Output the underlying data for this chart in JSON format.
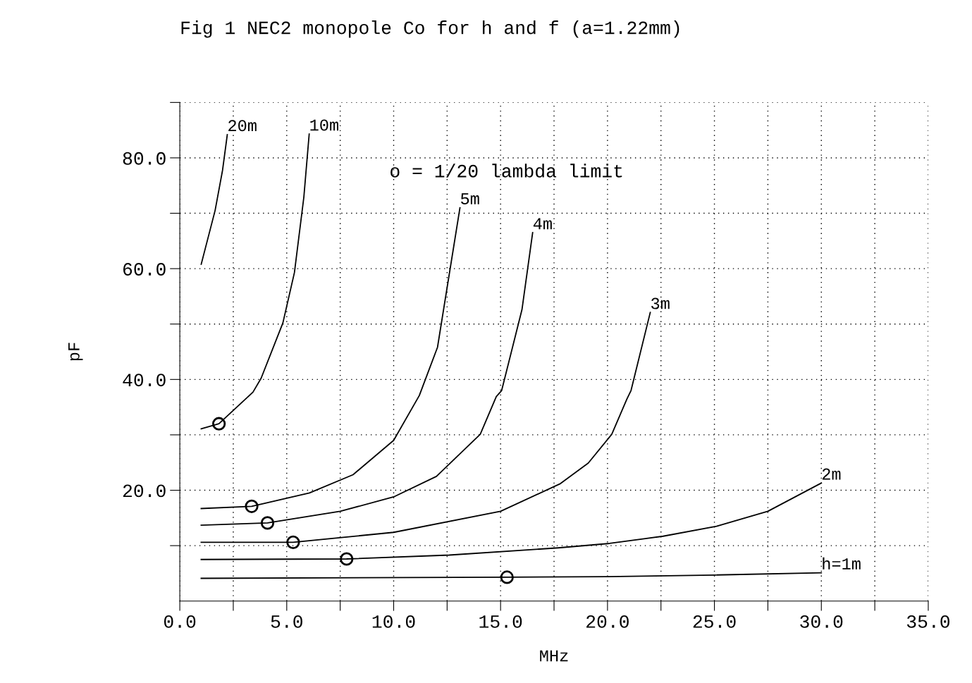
{
  "chart_data": {
    "type": "line",
    "title": "Fig 1 NEC2 monopole Co for h and f (a=1.22mm)",
    "xlabel": "MHz",
    "ylabel": "pF",
    "annotations": [
      "o = 1/20 lambda limit"
    ],
    "series": [
      {
        "name": "20m",
        "color": "#000000",
        "x": [
          1,
          1.65,
          2.0,
          2.22
        ],
        "values": [
          60.8,
          70.5,
          77.8,
          84.2
        ]
      },
      {
        "name": "10m",
        "color": "#000000",
        "x": [
          1,
          1.83,
          3.42,
          3.8,
          4.82,
          5.36,
          5.8,
          6.05
        ],
        "values": [
          31.1,
          32.0,
          37.7,
          40.2,
          50.2,
          59.3,
          72.9,
          84.3
        ]
      },
      {
        "name": "5m",
        "color": "#000000",
        "x": [
          1,
          3.36,
          6.06,
          8.1,
          10.0,
          11.2,
          12.05,
          13.1
        ],
        "values": [
          16.7,
          17.1,
          19.5,
          22.8,
          29.0,
          37.1,
          45.8,
          71.0
        ]
      },
      {
        "name": "4m",
        "color": "#000000",
        "x": [
          1,
          4.1,
          7.5,
          10.0,
          12.0,
          14.05,
          14.8,
          15.05,
          16.0,
          16.5
        ],
        "values": [
          13.7,
          14.1,
          16.2,
          18.8,
          22.5,
          30.1,
          36.9,
          38.0,
          52.6,
          66.5
        ]
      },
      {
        "name": "3m",
        "color": "#000000",
        "x": [
          1,
          5.3,
          10.0,
          15.0,
          17.8,
          19.1,
          20.2,
          20.9,
          21.1,
          22.0
        ],
        "values": [
          10.6,
          10.6,
          12.4,
          16.2,
          21.2,
          24.9,
          30.1,
          36.4,
          38.0,
          52.1
        ]
      },
      {
        "name": "2m",
        "color": "#000000",
        "x": [
          1,
          7.8,
          12.6,
          17.7,
          20.1,
          22.6,
          25.1,
          27.5,
          30.0
        ],
        "values": [
          7.5,
          7.6,
          8.3,
          9.6,
          10.4,
          11.7,
          13.5,
          16.2,
          21.3
        ]
      },
      {
        "name": "h=1m",
        "color": "#000000",
        "x": [
          1,
          15.3,
          20.0,
          25.0,
          30.0
        ],
        "values": [
          4.1,
          4.3,
          4.4,
          4.7,
          5.1
        ]
      },
      {
        "type": "scatter",
        "marker": "circle",
        "color": "#000000",
        "x": [
          1.83,
          3.36,
          4.1,
          5.3,
          7.8,
          15.3
        ],
        "values": [
          32.0,
          17.1,
          14.1,
          10.6,
          7.6,
          4.3
        ]
      }
    ],
    "xlim": [
      0,
      35
    ],
    "ylim": [
      0,
      90
    ],
    "xticks": [
      {
        "value": 0,
        "label": "0.0"
      },
      {
        "value": 2.5,
        "label": null
      },
      {
        "value": 5,
        "label": "5.0"
      },
      {
        "value": 7.5,
        "label": null
      },
      {
        "value": 10,
        "label": "10.0"
      },
      {
        "value": 12.5,
        "label": null
      },
      {
        "value": 15,
        "label": "15.0"
      },
      {
        "value": 17.5,
        "label": null
      },
      {
        "value": 20,
        "label": "20.0"
      },
      {
        "value": 22.5,
        "label": null
      },
      {
        "value": 25,
        "label": "25.0"
      },
      {
        "value": 27.5,
        "label": null
      },
      {
        "value": 30,
        "label": "30.0"
      },
      {
        "value": 32.5,
        "label": null
      },
      {
        "value": 35,
        "label": "35.0"
      }
    ],
    "yticks": [
      {
        "value": 10,
        "label": null
      },
      {
        "value": 20,
        "label": "20.0"
      },
      {
        "value": 30,
        "label": null
      },
      {
        "value": 40,
        "label": "40.0"
      },
      {
        "value": 50,
        "label": null
      },
      {
        "value": 60,
        "label": "60.0"
      },
      {
        "value": 70,
        "label": null
      },
      {
        "value": 80,
        "label": "80.0"
      },
      {
        "value": 90,
        "label": null
      }
    ],
    "grid": true,
    "legend": false,
    "line_style": "solid"
  }
}
